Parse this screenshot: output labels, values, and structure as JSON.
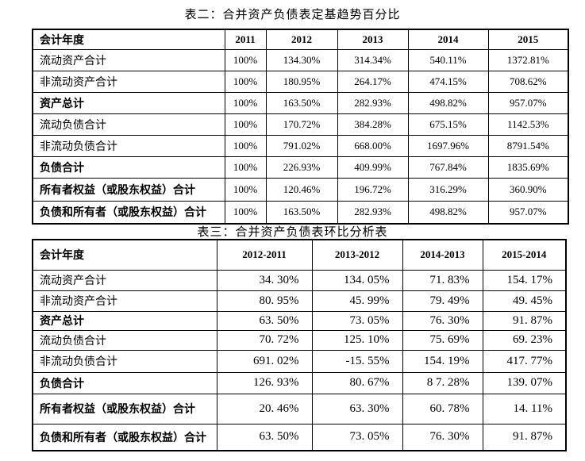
{
  "table2": {
    "title": "表二：合并资产负债表定基趋势百分比",
    "header": [
      "会计年度",
      "2011",
      "2012",
      "2013",
      "2014",
      "2015"
    ],
    "rows": [
      {
        "label": "流动资产合计",
        "bold": false,
        "values": [
          "100%",
          "134.30%",
          "314.34%",
          "540.11%",
          "1372.81%"
        ]
      },
      {
        "label": "非流动资产合计",
        "bold": false,
        "values": [
          "100%",
          "180.95%",
          "264.17%",
          "474.15%",
          "708.62%"
        ]
      },
      {
        "label": "资产总计",
        "bold": true,
        "values": [
          "100%",
          "163.50%",
          "282.93%",
          "498.82%",
          "957.07%"
        ]
      },
      {
        "label": "流动负债合计",
        "bold": false,
        "values": [
          "100%",
          "170.72%",
          "384.28%",
          "675.15%",
          "1142.53%"
        ]
      },
      {
        "label": "非流动负债合计",
        "bold": false,
        "values": [
          "100%",
          "791.02%",
          "668.00%",
          "1697.96%",
          "8791.54%"
        ]
      },
      {
        "label": "负债合计",
        "bold": true,
        "values": [
          "100%",
          "226.93%",
          "409.99%",
          "767.84%",
          "1835.69%"
        ]
      },
      {
        "label": "所有者权益（或股东权益）合计",
        "bold": true,
        "values": [
          "100%",
          "120.46%",
          "196.72%",
          "316.29%",
          "360.90%"
        ]
      },
      {
        "label": "负债和所有者（或股东权益）合计",
        "bold": true,
        "values": [
          "100%",
          "163.50%",
          "282.93%",
          "498.82%",
          "957.07%"
        ]
      }
    ]
  },
  "table3": {
    "title": "表三：合并资产负债表环比分析表",
    "header": [
      "会计年度",
      "2012-2011",
      "2013-2012",
      "2014-2013",
      "2015-2014"
    ],
    "rows": [
      {
        "label": "流动资产合计",
        "bold": false,
        "values": [
          "34. 30%",
          "134. 05%",
          "71. 83%",
          "154. 17%"
        ]
      },
      {
        "label": "非流动资产合计",
        "bold": false,
        "values": [
          "80. 95%",
          "45. 99%",
          "79. 49%",
          "49. 45%"
        ]
      },
      {
        "label": "资产总计",
        "bold": true,
        "values": [
          "63. 50%",
          "73. 05%",
          "76. 30%",
          "91. 87%"
        ]
      },
      {
        "label": "流动负债合计",
        "bold": false,
        "values": [
          "70. 72%",
          "125. 10%",
          "75. 69%",
          "69. 23%"
        ]
      },
      {
        "label": "非流动负债合计",
        "bold": false,
        "values": [
          "691. 02%",
          "-15. 55%",
          "154. 19%",
          "417. 77%"
        ]
      },
      {
        "label": "负债合计",
        "bold": true,
        "values": [
          "126. 93%",
          "80. 67%",
          "8 7. 28%",
          "139. 07%"
        ]
      },
      {
        "label": "所有者权益（或股东权益）合计",
        "bold": true,
        "values": [
          "20. 46%",
          "63. 30%",
          "60. 78%",
          "14. 11%"
        ]
      },
      {
        "label": "负债和所有者（或股东权益）合计",
        "bold": true,
        "values": [
          "63. 50%",
          "73. 05%",
          "76. 30%",
          "91. 87%"
        ]
      }
    ]
  }
}
